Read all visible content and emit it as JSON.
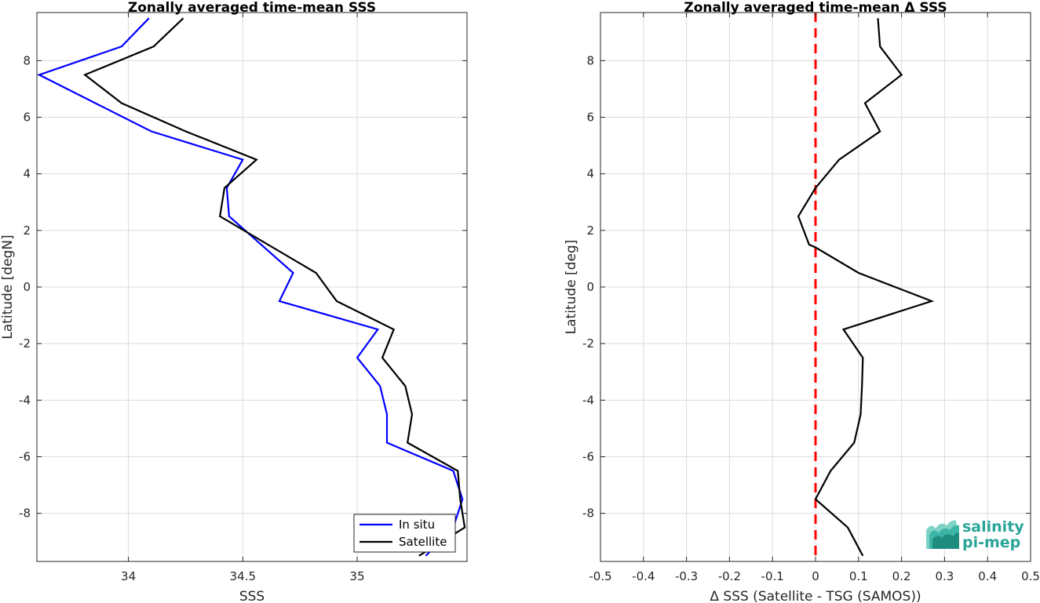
{
  "colors": {
    "insitu": "#0000ff",
    "satellite": "#000000",
    "zero_line": "#ff0000",
    "logo": "#2aa59a"
  },
  "logo": {
    "line1": "salinity",
    "line2": "pi-mep"
  },
  "chart_data": [
    {
      "type": "line",
      "title": "Zonally averaged time-mean SSS",
      "xlabel": "SSS",
      "ylabel": "Latitude [degN]",
      "xlim": [
        33.6,
        35.48
      ],
      "ylim": [
        -9.7,
        9.7
      ],
      "xticks": [
        34,
        34.5,
        35
      ],
      "xtick_labels": [
        "34",
        "34.5",
        "35"
      ],
      "yticks": [
        -8,
        -6,
        -4,
        -2,
        0,
        2,
        4,
        6,
        8
      ],
      "ytick_labels": [
        "-8",
        "-6",
        "-4",
        "-2",
        "0",
        "2",
        "4",
        "6",
        "8"
      ],
      "grid": true,
      "legend_position": "bottom-right",
      "series": [
        {
          "name": "In situ",
          "color_key": "insitu",
          "points": [
            [
              33.61,
              7.5
            ],
            [
              33.97,
              8.5
            ],
            [
              34.09,
              9.5
            ],
            [
              34.1,
              5.5
            ],
            [
              34.5,
              4.5
            ],
            [
              34.43,
              3.5
            ],
            [
              34.44,
              2.5
            ],
            [
              34.72,
              0.5
            ],
            [
              34.66,
              -0.5
            ],
            [
              35.09,
              -1.5
            ],
            [
              35.0,
              -2.5
            ],
            [
              35.1,
              -3.5
            ],
            [
              35.13,
              -4.5
            ],
            [
              35.13,
              -5.5
            ],
            [
              35.42,
              -6.5
            ],
            [
              35.46,
              -7.5
            ],
            [
              35.42,
              -8.5
            ],
            [
              35.3,
              -9.5
            ]
          ]
        },
        {
          "name": "Satellite",
          "color_key": "satellite",
          "points": [
            [
              33.81,
              7.5
            ],
            [
              34.11,
              8.5
            ],
            [
              34.24,
              9.5
            ],
            [
              33.97,
              6.5
            ],
            [
              34.25,
              5.5
            ],
            [
              34.56,
              4.5
            ],
            [
              34.42,
              3.5
            ],
            [
              34.4,
              2.5
            ],
            [
              34.82,
              0.5
            ],
            [
              34.91,
              -0.5
            ],
            [
              35.16,
              -1.5
            ],
            [
              35.11,
              -2.5
            ],
            [
              35.21,
              -3.5
            ],
            [
              35.24,
              -4.5
            ],
            [
              35.22,
              -5.5
            ],
            [
              35.44,
              -6.5
            ],
            [
              35.45,
              -7.5
            ],
            [
              35.47,
              -8.5
            ],
            [
              35.27,
              -9.5
            ]
          ]
        }
      ]
    },
    {
      "type": "line",
      "title": "Zonally averaged time-mean Δ SSS",
      "xlabel": "Δ SSS (Satellite - TSG (SAMOS))",
      "ylabel": "Latitude [deg]",
      "xlim": [
        -0.5,
        0.5
      ],
      "ylim": [
        -9.7,
        9.7
      ],
      "xticks": [
        -0.5,
        -0.4,
        -0.3,
        -0.2,
        -0.1,
        0,
        0.1,
        0.2,
        0.3,
        0.4,
        0.5
      ],
      "xtick_labels": [
        "-0.5",
        "-0.4",
        "-0.3",
        "-0.2",
        "-0.1",
        "0",
        "0.1",
        "0.2",
        "0.3",
        "0.4",
        "0.5"
      ],
      "yticks": [
        -8,
        -6,
        -4,
        -2,
        0,
        2,
        4,
        6,
        8
      ],
      "ytick_labels": [
        "-8",
        "-6",
        "-4",
        "-2",
        "0",
        "2",
        "4",
        "6",
        "8"
      ],
      "grid": true,
      "reference_line_x": 0,
      "series": [
        {
          "name": "",
          "color_key": "satellite",
          "points": [
            [
              0.145,
              9.5
            ],
            [
              0.15,
              8.5
            ],
            [
              0.2,
              7.5
            ],
            [
              0.115,
              6.5
            ],
            [
              0.15,
              5.5
            ],
            [
              0.055,
              4.5
            ],
            [
              0.0,
              3.5
            ],
            [
              -0.04,
              2.5
            ],
            [
              -0.015,
              1.5
            ],
            [
              0.0,
              1.4
            ],
            [
              0.1,
              0.5
            ],
            [
              0.27,
              -0.5
            ],
            [
              0.065,
              -1.5
            ],
            [
              0.11,
              -2.5
            ],
            [
              0.108,
              -3.5
            ],
            [
              0.105,
              -4.5
            ],
            [
              0.09,
              -5.5
            ],
            [
              0.035,
              -6.5
            ],
            [
              0.0,
              -7.5
            ],
            [
              0.075,
              -8.5
            ],
            [
              0.11,
              -9.5
            ]
          ]
        }
      ]
    }
  ]
}
